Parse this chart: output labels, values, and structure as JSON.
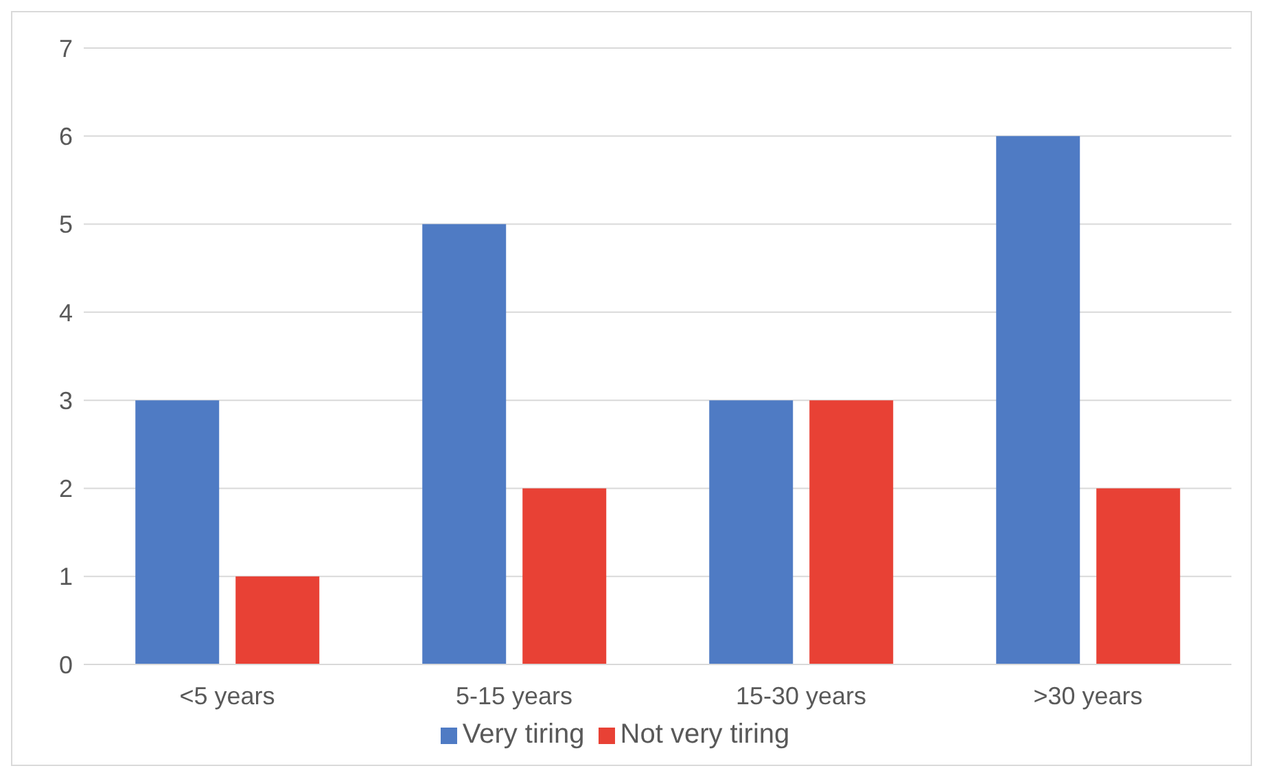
{
  "chart_data": {
    "type": "bar",
    "categories": [
      "<5 years",
      "5-15 years",
      "15-30 years",
      ">30 years"
    ],
    "series": [
      {
        "name": "Very tiring",
        "color": "#4f7bc4",
        "values": [
          3,
          5,
          3,
          6
        ]
      },
      {
        "name": "Not very tiring",
        "color": "#e84135",
        "values": [
          1,
          2,
          3,
          2
        ]
      }
    ],
    "ylim": [
      0,
      7
    ],
    "yticks": [
      0,
      1,
      2,
      3,
      4,
      5,
      6,
      7
    ],
    "grid": "y",
    "legend": "bottom"
  }
}
